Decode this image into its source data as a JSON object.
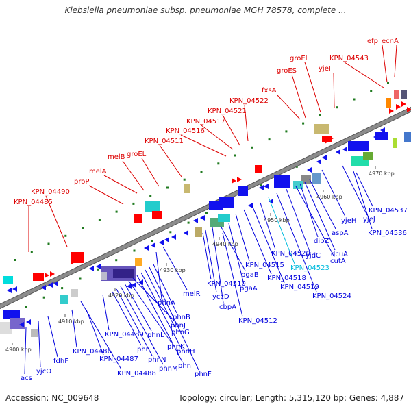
{
  "title": "Klebsiella pneumoniae subsp. pneumoniae MGH 78578, complete ...",
  "footer": {
    "accession": "Accession: NC_009648",
    "info": "Topology: circular; Length: 5,315,120 bp; Genes: 4,887"
  },
  "colors": {
    "backbone": "#8c8c8c",
    "label_red": "#dd0000",
    "label_blue": "#0000dd",
    "label_cyan": "#00bbdd",
    "gene_red": "#ff0000",
    "gene_blue": "#1111ee",
    "tick": "#1f7a1f"
  },
  "scale_labels": [
    "4900 kbp",
    "4910 kbp",
    "4920 kbp",
    "4930 kbp",
    "4940 kbp",
    "4950 kbp",
    "4960 kbp",
    "4970 kbp"
  ],
  "upper_labels": [
    "KPN_04485",
    "KPN_04490",
    "proP",
    "melA",
    "melB",
    "groEL",
    "KPN_04511",
    "KPN_04516",
    "KPN_04517",
    "KPN_04521",
    "KPN_04522",
    "fxsA",
    "groES",
    "groEL",
    "yjeI",
    "KPN_04543",
    "efp",
    "ecnA"
  ],
  "lower_labels": [
    "acs",
    "yjcO",
    "fdhF",
    "KPN_04486",
    "KPN_04487",
    "KPN_04488",
    "KPN_04489",
    "phnP",
    "phnN",
    "phnM",
    "phnL",
    "phnK",
    "phnJ",
    "phnI",
    "phnH",
    "phnG",
    "phnF",
    "phnB",
    "phnA",
    "melR",
    "KPN_04510",
    "yccD",
    "cbpA",
    "pgaB",
    "pgaA",
    "KPN_04512",
    "KPN_04515",
    "KPN_04518",
    "KPN_04519",
    "KPN_04520",
    "KPN_04523",
    "KPN_04524",
    "yjdC",
    "cutA",
    "dipZ",
    "dcuA",
    "aspA",
    "yjeH",
    "yjeJ",
    "KPN_04537",
    "KPN_04536"
  ]
}
